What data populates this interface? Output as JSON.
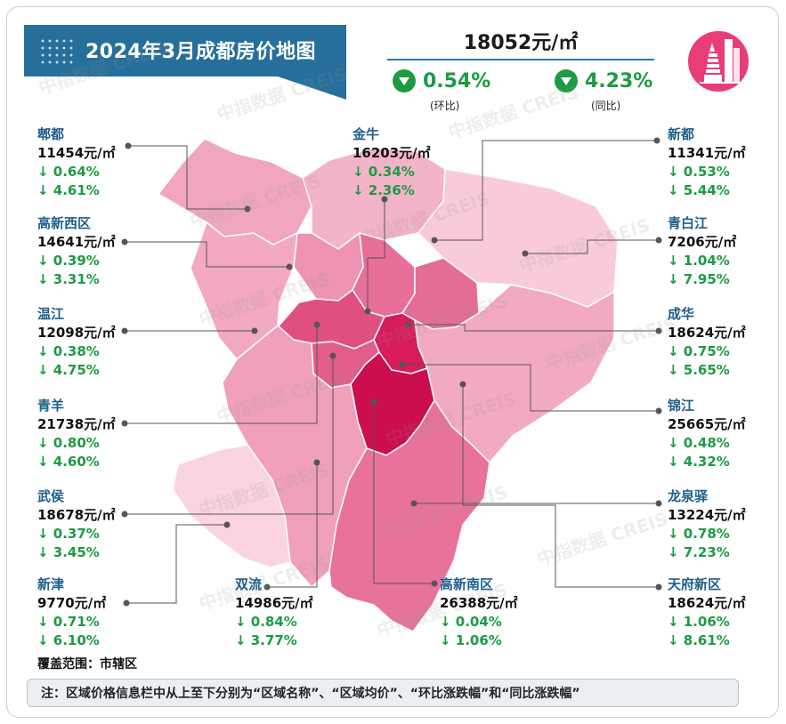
{
  "title": "2024年3月成都房价地图",
  "summary": {
    "avg_price": "18052元/㎡",
    "mom": {
      "value": "0.54%",
      "label": "(环比)",
      "direction": "down"
    },
    "yoy": {
      "value": "4.23%",
      "label": "(同比)",
      "direction": "down"
    }
  },
  "watermark": "中指数据 CREIS",
  "districts": [
    {
      "name": "郫都",
      "price": "11454元/㎡",
      "mom": "↓ 0.64%",
      "yoy": "↓ 4.61%"
    },
    {
      "name": "金牛",
      "price": "16203元/㎡",
      "mom": "↓ 0.34%",
      "yoy": "↓ 2.36%"
    },
    {
      "name": "新都",
      "price": "11341元/㎡",
      "mom": "↓ 0.53%",
      "yoy": "↓ 5.44%"
    },
    {
      "name": "高新西区",
      "price": "14641元/㎡",
      "mom": "↓ 0.39%",
      "yoy": "↓ 3.31%"
    },
    {
      "name": "青白江",
      "price": "7206元/㎡",
      "mom": "↓ 1.04%",
      "yoy": "↓ 7.95%"
    },
    {
      "name": "温江",
      "price": "12098元/㎡",
      "mom": "↓ 0.38%",
      "yoy": "↓ 4.75%"
    },
    {
      "name": "成华",
      "price": "18624元/㎡",
      "mom": "↓ 0.75%",
      "yoy": "↓ 5.65%"
    },
    {
      "name": "青羊",
      "price": "21738元/㎡",
      "mom": "↓ 0.80%",
      "yoy": "↓ 4.60%"
    },
    {
      "name": "锦江",
      "price": "25665元/㎡",
      "mom": "↓ 0.48%",
      "yoy": "↓ 4.32%"
    },
    {
      "name": "武侯",
      "price": "18678元/㎡",
      "mom": "↓ 0.37%",
      "yoy": "↓ 3.45%"
    },
    {
      "name": "龙泉驿",
      "price": "13224元/㎡",
      "mom": "↓ 0.78%",
      "yoy": "↓ 7.23%"
    },
    {
      "name": "新津",
      "price": "9770元/㎡",
      "mom": "↓ 0.71%",
      "yoy": "↓ 6.10%"
    },
    {
      "name": "双流",
      "price": "14986元/㎡",
      "mom": "↓ 0.84%",
      "yoy": "↓ 3.77%"
    },
    {
      "name": "高新南区",
      "price": "26388元/㎡",
      "mom": "↓ 0.04%",
      "yoy": "↓ 1.06%"
    },
    {
      "name": "天府新区",
      "price": "18624元/㎡",
      "mom": "↓ 1.06%",
      "yoy": "↓ 8.61%"
    }
  ],
  "coverage": "覆盖范围：市辖区",
  "note": "注：区域价格信息栏中从上至下分别为“区域名称”、“区域均价”、“环比涨跌幅”和“同比涨跌幅”",
  "colors": {
    "banner": "#266f9b",
    "down_green": "#1d9b42",
    "name_blue": "#1e5f8a",
    "logo_pink": "#e83d78"
  }
}
